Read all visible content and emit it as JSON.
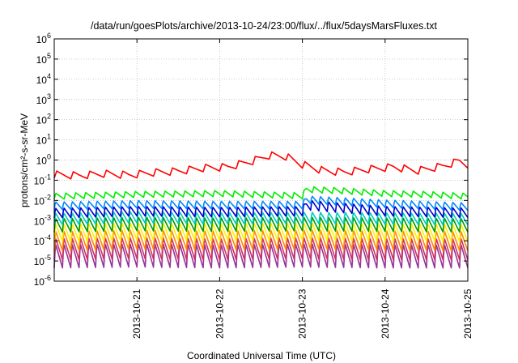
{
  "chart_data": {
    "type": "line",
    "title": "/data/run/goesPlots/archive/2013-10-24/23:00/flux/../flux/5daysMarsFluxes.txt",
    "xlabel": "Coordinated Universal Time (UTC)",
    "ylabel": "protons/cm²-s-sr-MeV",
    "y_scale": "log",
    "ylim": [
      1e-06,
      1000000.0
    ],
    "y_tick_labels": [
      {
        "exp": "-6",
        "value": 1e-06
      },
      {
        "exp": "-5",
        "value": 1e-05
      },
      {
        "exp": "-4",
        "value": 0.0001
      },
      {
        "exp": "-3",
        "value": 0.001
      },
      {
        "exp": "-2",
        "value": 0.01
      },
      {
        "exp": "-1",
        "value": 0.1
      },
      {
        "exp": "0",
        "value": 1
      },
      {
        "exp": "1",
        "value": 10
      },
      {
        "exp": "2",
        "value": 100
      },
      {
        "exp": "3",
        "value": 1000
      },
      {
        "exp": "4",
        "value": 10000
      },
      {
        "exp": "5",
        "value": 100000
      },
      {
        "exp": "6",
        "value": 1000000
      }
    ],
    "xlim": [
      "2013-10-20",
      "2013-10-25"
    ],
    "x_ticks": [
      "2013-10-21",
      "2013-10-22",
      "2013-10-23",
      "2013-10-24",
      "2013-10-25"
    ],
    "grid": true,
    "series": [
      {
        "color": "#ff0000",
        "x_days": [
          0,
          0.3,
          0.6,
          0.9,
          1.2,
          1.5,
          1.8,
          2.1,
          2.4,
          2.6,
          2.8,
          3.0,
          3.25,
          3.5,
          3.8,
          4.1,
          4.4,
          4.7,
          4.9,
          5.0
        ],
        "y": [
          0.19,
          0.17,
          0.21,
          0.18,
          0.24,
          0.28,
          0.4,
          0.45,
          0.9,
          1.7,
          1.5,
          0.6,
          0.3,
          0.25,
          0.35,
          0.45,
          0.3,
          0.5,
          0.9,
          0.6
        ]
      },
      {
        "color": "#00ee00",
        "x_days": [
          0,
          1,
          2,
          3.0,
          3.05,
          3.5,
          4,
          4.5,
          5
        ],
        "y": [
          0.016,
          0.02,
          0.022,
          0.017,
          0.035,
          0.03,
          0.022,
          0.02,
          0.016
        ]
      },
      {
        "color": "#0088ff",
        "x_days": [
          0,
          1,
          2,
          3.0,
          3.05,
          4,
          5
        ],
        "y": [
          0.0055,
          0.0065,
          0.006,
          0.006,
          0.011,
          0.007,
          0.005
        ]
      },
      {
        "color": "#0000cc",
        "x_days": [
          0,
          1,
          2,
          3.0,
          3.05,
          4,
          5
        ],
        "y": [
          0.0024,
          0.003,
          0.0027,
          0.003,
          0.006,
          0.003,
          0.0025
        ]
      },
      {
        "color": "#00ccbb",
        "x_days": [
          0,
          1,
          2,
          3,
          4,
          5
        ],
        "y": [
          0.0012,
          0.0015,
          0.0013,
          0.0014,
          0.0013,
          0.0012
        ]
      },
      {
        "color": "#009900",
        "x_days": [
          0,
          1,
          2,
          3,
          4,
          5
        ],
        "y": [
          0.0006,
          0.0007,
          0.00065,
          0.0007,
          0.00065,
          0.0006
        ]
      },
      {
        "color": "#ffee00",
        "x_days": [
          0,
          1,
          2,
          3,
          4,
          5
        ],
        "y": [
          0.00025,
          0.0003,
          0.00028,
          0.0003,
          0.00028,
          0.00025
        ]
      },
      {
        "color": "#ff8800",
        "x_days": [
          0,
          1,
          2,
          3,
          4,
          5
        ],
        "y": [
          0.0001,
          0.00012,
          0.00011,
          0.00012,
          0.00011,
          0.0001
        ]
      },
      {
        "color": "#cc3366",
        "x_days": [
          0,
          1,
          2,
          3,
          4,
          5
        ],
        "y": [
          4e-05,
          4.5e-05,
          4e-05,
          4.5e-05,
          4e-05,
          4e-05
        ]
      },
      {
        "color": "#993399",
        "x_days": [
          0,
          1,
          2,
          3,
          4,
          5
        ],
        "y": [
          1.8e-05,
          2e-05,
          1.8e-05,
          2e-05,
          1.8e-05,
          1.8e-05
        ]
      }
    ]
  }
}
